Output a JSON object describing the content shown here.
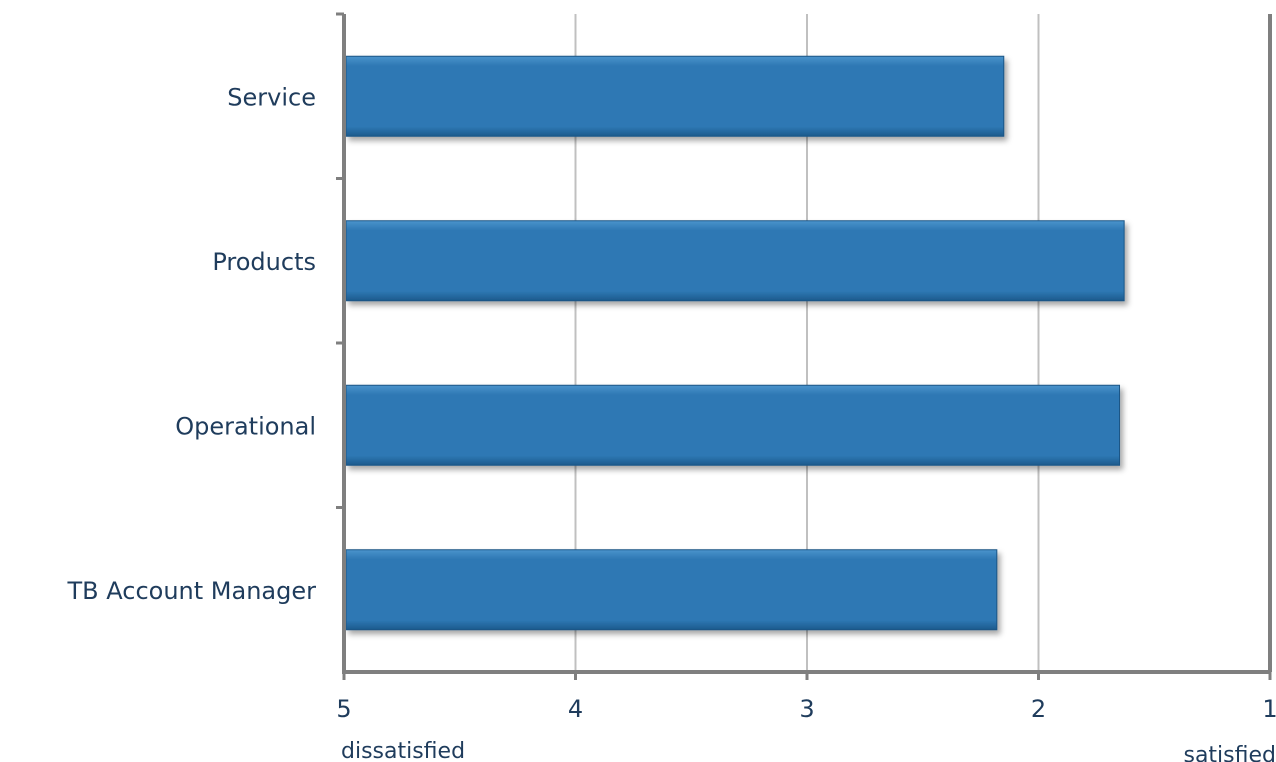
{
  "chart_data": {
    "type": "bar",
    "orientation": "horizontal",
    "categories": [
      "Service",
      "Products",
      "Operational",
      "TB Account Manager"
    ],
    "values": [
      2.15,
      1.63,
      1.65,
      2.18
    ],
    "xlim": [
      5,
      1
    ],
    "x_reversed": true,
    "xticks": [
      "5",
      "4",
      "3",
      "2",
      "1"
    ],
    "annotations": {
      "left": "dissatisfied",
      "right": "satisfied"
    },
    "grid": "vertical",
    "legend": "none",
    "colors": {
      "bar": "#2e78b4",
      "bar_dark": "#1c5a8c",
      "bar_light": "#4a94cc",
      "grid": "#c0c0c0",
      "axis": "#7f7f7f",
      "text": "#1f3c5c"
    }
  }
}
